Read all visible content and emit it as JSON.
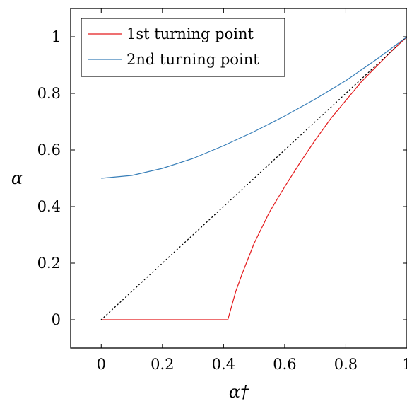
{
  "chart_data": {
    "type": "line",
    "title": "",
    "xlabel": "α†",
    "ylabel": "α",
    "xlim": [
      -0.1,
      1.0
    ],
    "ylim": [
      -0.1,
      1.1
    ],
    "xticks": [
      "0",
      "0.2",
      "0.4",
      "0.6",
      "0.8",
      "1"
    ],
    "yticks": [
      "0",
      "0.2",
      "0.4",
      "0.6",
      "0.8",
      "1"
    ],
    "xtick_values": [
      0,
      0.2,
      0.4,
      0.6,
      0.8,
      1
    ],
    "ytick_values": [
      0,
      0.2,
      0.4,
      0.6,
      0.8,
      1
    ],
    "grid": false,
    "legend_position": "top-left",
    "series": [
      {
        "name": "1st turning point",
        "color": "#e41a1c",
        "x": [
          0,
          0.1,
          0.2,
          0.3,
          0.414,
          0.44,
          0.46,
          0.5,
          0.55,
          0.6,
          0.65,
          0.7,
          0.75,
          0.8,
          0.85,
          0.9,
          0.95,
          1.0
        ],
        "y": [
          0,
          0,
          0,
          0,
          0,
          0.1,
          0.16,
          0.27,
          0.38,
          0.47,
          0.555,
          0.635,
          0.71,
          0.775,
          0.84,
          0.895,
          0.95,
          1.0
        ]
      },
      {
        "name": "2nd turning point",
        "color": "#377eb8",
        "x": [
          0,
          0.1,
          0.2,
          0.3,
          0.4,
          0.5,
          0.6,
          0.7,
          0.8,
          0.9,
          1.0
        ],
        "y": [
          0.5,
          0.51,
          0.535,
          0.57,
          0.615,
          0.665,
          0.72,
          0.78,
          0.845,
          0.92,
          1.0
        ]
      },
      {
        "name": "",
        "color": "#000000",
        "style": "dotted",
        "x": [
          0,
          1
        ],
        "y": [
          0,
          1
        ]
      }
    ]
  }
}
